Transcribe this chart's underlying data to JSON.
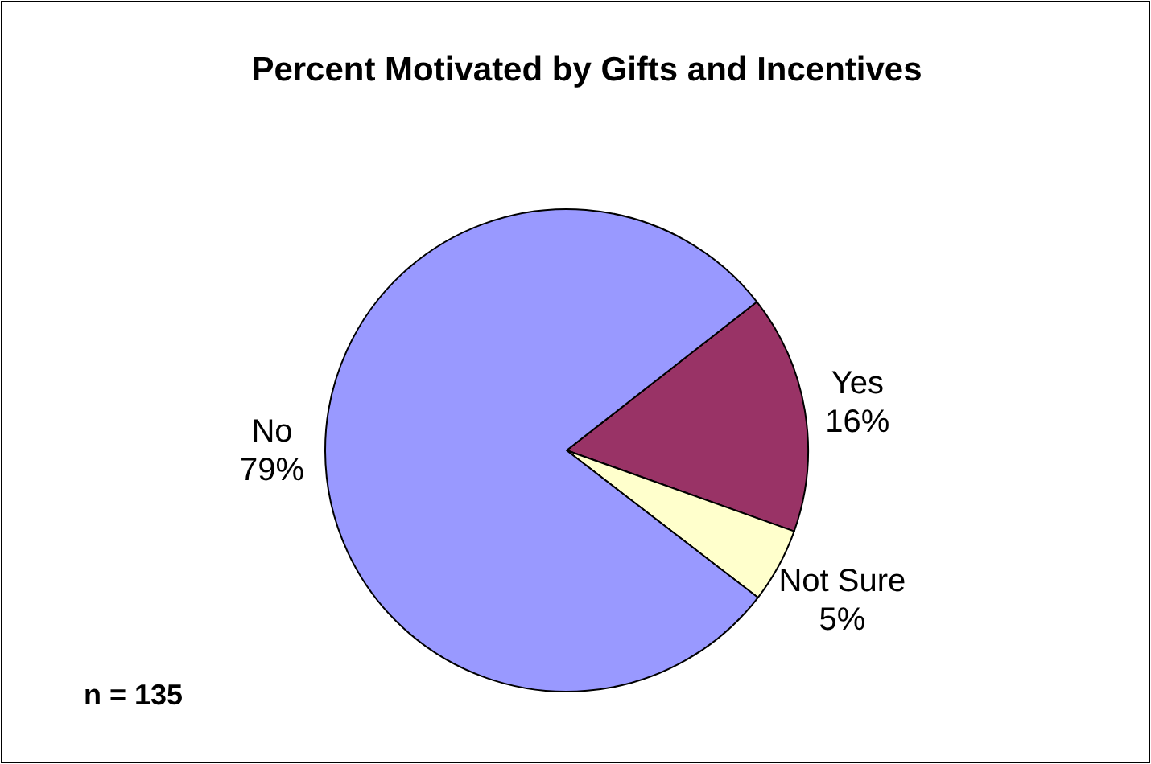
{
  "chart_data": {
    "type": "pie",
    "title": "Percent Motivated by Gifts and Incentives",
    "categories": [
      "Yes",
      "Not Sure",
      "No"
    ],
    "values": [
      16,
      5,
      79
    ],
    "colors": [
      "#993366",
      "#ffffcc",
      "#9999ff"
    ],
    "value_labels": [
      "16%",
      "5%",
      "79%"
    ],
    "annotations": [
      "n = 135"
    ]
  }
}
